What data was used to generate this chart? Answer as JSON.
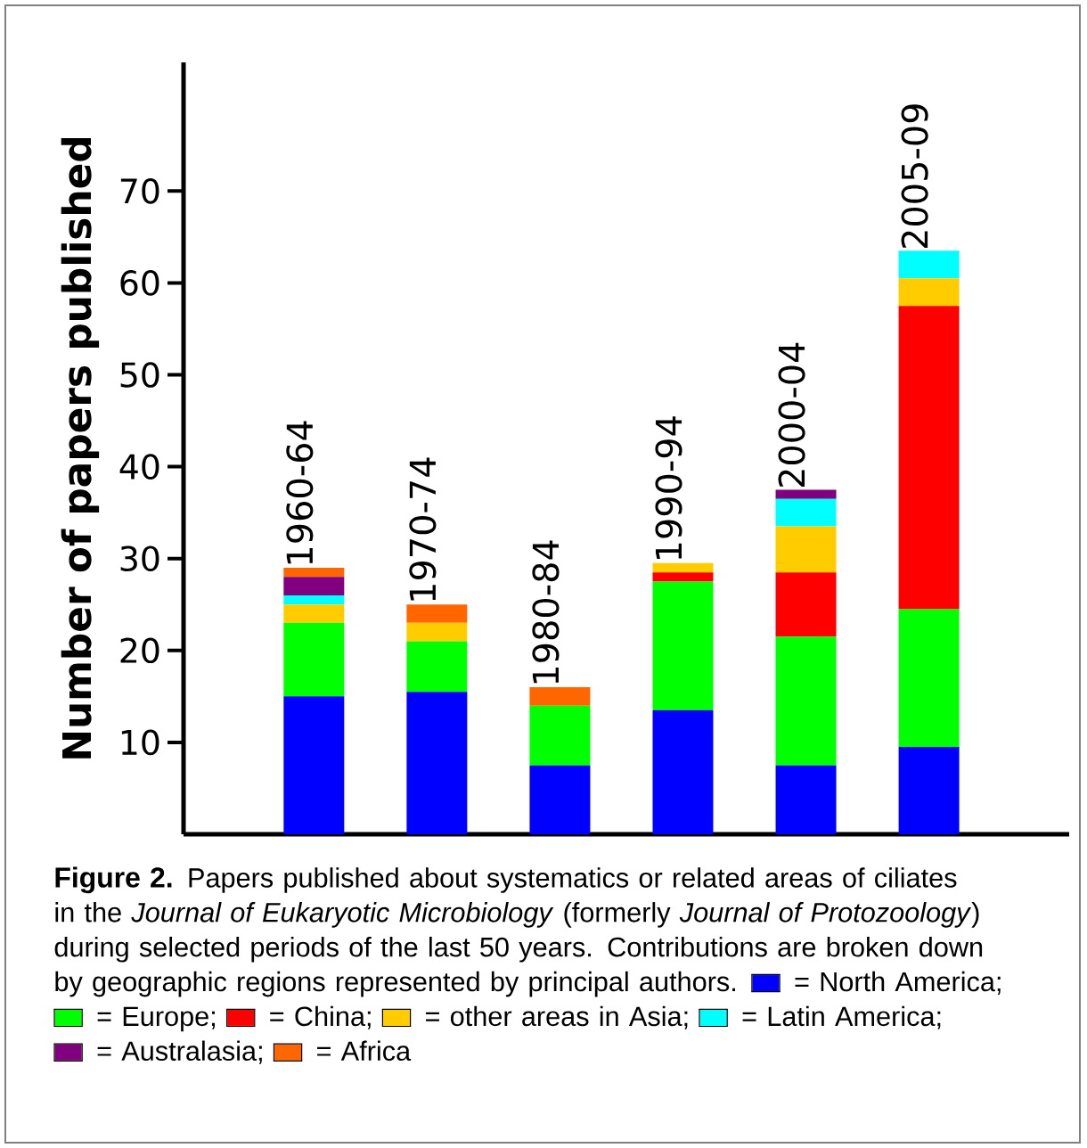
{
  "chart_data": {
    "type": "bar",
    "stacked": true,
    "title": "Figure 2.",
    "annotations": [
      "Papers published about systematics or related areas of ciliates in the *Journal of Eukaryotic Microbiology* (formerly *Journal of Protozoology*) during selected periods of the last 50 years. Contributions are broken down by geographic regions represented by principal authors."
    ],
    "ylabel": "Number of papers published",
    "categories": [
      "1960-64",
      "1970-74",
      "1980-84",
      "1990-94",
      "2000-04",
      "2005-09"
    ],
    "series": [
      {
        "name": "= North America;",
        "color": "#0000ff",
        "values": [
          15,
          15.5,
          7.5,
          13.5,
          7.5,
          9.5
        ]
      },
      {
        "name": "= Europe;",
        "color": "#00ff00",
        "values": [
          8,
          5.5,
          6.5,
          14,
          14,
          15
        ]
      },
      {
        "name": "= China;",
        "color": "#ff0000",
        "values": [
          0,
          0,
          0,
          1,
          7,
          33
        ]
      },
      {
        "name": "= other areas in Asia;",
        "color": "#ffcc00",
        "values": [
          2,
          2,
          0,
          1,
          5,
          3
        ]
      },
      {
        "name": "= Latin America;",
        "color": "#00ffff",
        "values": [
          1,
          0,
          0,
          0,
          3,
          3
        ]
      },
      {
        "name": "= Australasia;",
        "color": "#800080",
        "values": [
          2,
          0,
          0,
          0,
          1,
          0
        ]
      },
      {
        "name": "= Africa",
        "color": "#ff6600",
        "values": [
          1,
          2,
          2,
          0,
          0,
          0
        ]
      }
    ],
    "ylim": [
      0,
      84
    ],
    "yticks": [
      10,
      20,
      30,
      40,
      50,
      60,
      70
    ],
    "grid": false,
    "legend": "bottom"
  }
}
